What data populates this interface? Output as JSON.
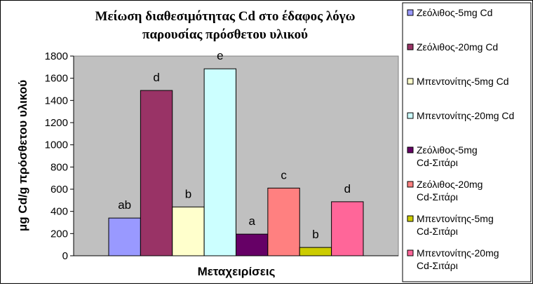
{
  "chart_data": {
    "type": "bar",
    "title_lines": [
      "Μείωση διαθεσιμότητας Cd στο έδαφος λόγω",
      "παρουσίας πρόσθετου υλικού"
    ],
    "xlabel": "Μεταχειρίσεις",
    "ylabel": "μg Cd/g πρόσθετου υλικού",
    "ylim": [
      0,
      1800
    ],
    "yticks": [
      0,
      200,
      400,
      600,
      800,
      1000,
      1200,
      1400,
      1600,
      1800
    ],
    "grid": false,
    "legend_position": "right",
    "series": [
      {
        "name": "Ζεόλιθος-5mg Cd",
        "value": 340,
        "label": "ab",
        "color": "#9999FF"
      },
      {
        "name": "Ζεόλιθος-20mg Cd",
        "value": 1490,
        "label": "d",
        "color": "#993366"
      },
      {
        "name": "Μπεντονίτης-5mg Cd",
        "value": 440,
        "label": "b",
        "color": "#FFFFCC"
      },
      {
        "name": "Μπεντονίτης-20mg Cd",
        "value": 1685,
        "label": "e",
        "color": "#CCFFFF"
      },
      {
        "name": "Ζεόλιθος-5mg Cd-Σιτάρι",
        "value": 195,
        "label": "a",
        "color": "#660066"
      },
      {
        "name": "Ζεόλιθος-20mg Cd-Σιτάρι",
        "value": 610,
        "label": "c",
        "color": "#FF8080"
      },
      {
        "name": "Μπεντονίτης-5mg Cd-Σιτάρι",
        "value": 75,
        "label": "b",
        "color": "#CCCC00"
      },
      {
        "name": "Μπεντονίτης-20mg Cd-Σιτάρι",
        "value": 487,
        "label": "d",
        "color": "#FF6699"
      }
    ],
    "plot_background": "#C0C0C0"
  }
}
